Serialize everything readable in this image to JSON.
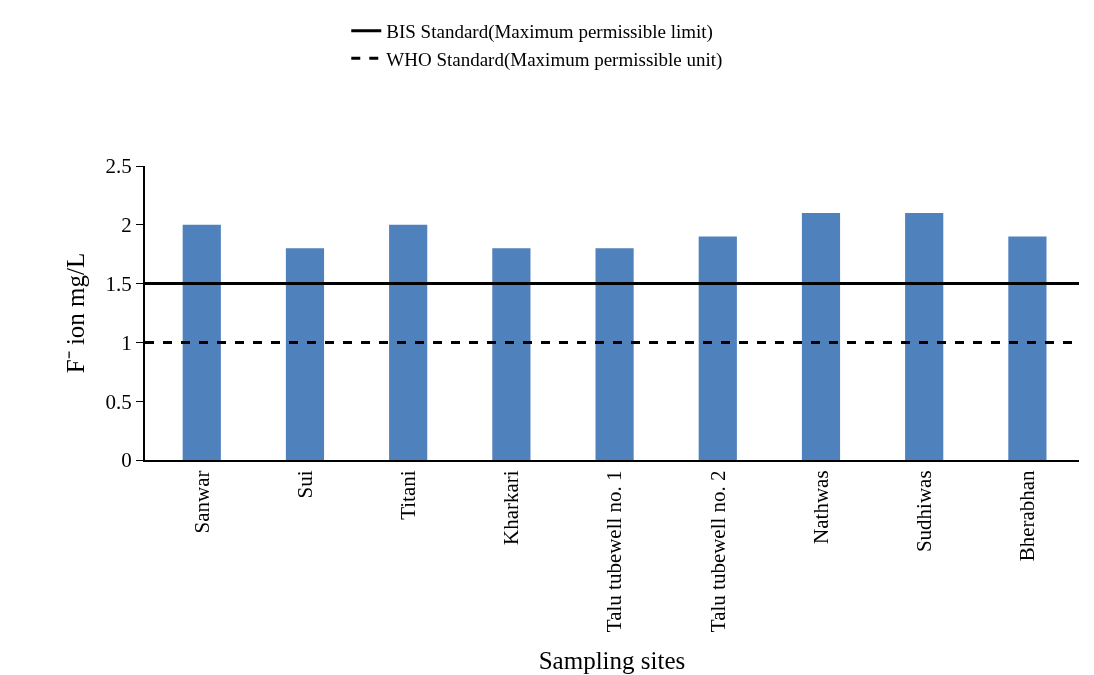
{
  "chart_data": {
    "type": "bar",
    "xlabel": "Sampling sites",
    "ylabel": "F⁻ ion mg/L",
    "categories": [
      "Sanwar",
      "Sui",
      "Titani",
      "Kharkari",
      "Talu tubewell no. 1",
      "Talu tubewell no. 2",
      "Nathwas",
      "Sudhiwas",
      "Bherabhan"
    ],
    "values": [
      2.0,
      1.8,
      2.0,
      1.8,
      1.8,
      1.9,
      2.1,
      2.1,
      1.9
    ],
    "color": "#4f81bd",
    "ylim": [
      0,
      2.5
    ],
    "yticks": [
      0,
      0.5,
      1,
      1.5,
      2,
      2.5
    ],
    "ref_lines": [
      {
        "axis": "y",
        "value": 1.5,
        "label": "BIS Standard(Maximum permissible limit)",
        "color": "#000000",
        "line_style": "solid"
      },
      {
        "axis": "y",
        "value": 1,
        "label": "WHO Standard(Maximum permissible unit)",
        "color": "#000000",
        "line_style": "dashed"
      }
    ],
    "grid": false,
    "legend": "top"
  }
}
